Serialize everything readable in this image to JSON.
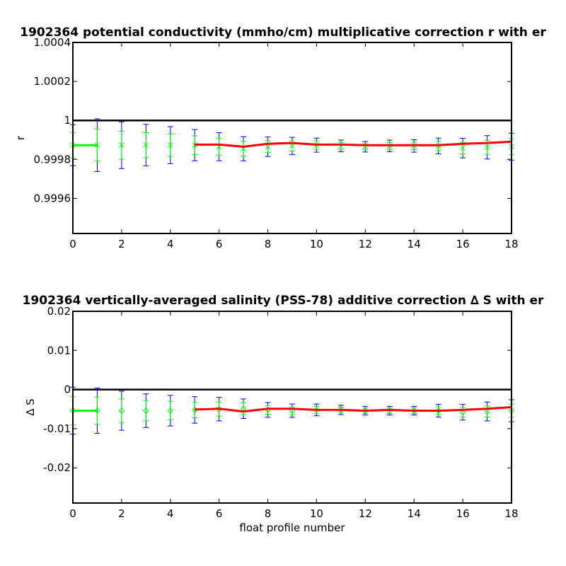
{
  "chart_data": [
    {
      "type": "errorbar",
      "title": "1902364 potential conductivity (mmho/cm) multiplicative correction r with er",
      "ylabel": "r",
      "xlim": [
        0,
        18
      ],
      "xticks": [
        0,
        2,
        4,
        6,
        8,
        10,
        12,
        14,
        16,
        18
      ],
      "ylim": [
        0.99942,
        1.0004
      ],
      "yticks": [
        0.9996,
        0.9998,
        1,
        1.0002,
        1.0004
      ],
      "reference_line": {
        "value": 1,
        "color": "#000000"
      },
      "series": [
        {
          "color": "#00ff00",
          "x": [
            0,
            1
          ],
          "values": [
            0.999873,
            0.999873
          ]
        },
        {
          "color": "#00ff00",
          "marker": "asterisk",
          "error_color": "#0000ff",
          "x": [
            0,
            1,
            2,
            3,
            4,
            5,
            6,
            7,
            8,
            9,
            10,
            11,
            12,
            13,
            14,
            15,
            16,
            17,
            18
          ],
          "values": [
            0.999873,
            0.999873,
            0.999873,
            0.999873,
            0.999873,
            0.999873,
            0.999865,
            0.999855,
            0.999865,
            0.999869,
            0.999873,
            0.999869,
            0.999865,
            0.999869,
            0.999869,
            0.999869,
            0.999858,
            0.999862,
            0.999865
          ],
          "errors": [
            6.5e-05,
            8.2e-05,
            7.2e-05,
            6.4e-05,
            5.7e-05,
            4.8e-05,
            4.3e-05,
            3.7e-05,
            3e-05,
            2.6e-05,
            2.2e-05,
            1.8e-05,
            1.6e-05,
            1.8e-05,
            1.9e-05,
            2.4e-05,
            3e-05,
            3.6e-05,
            4.1e-05
          ],
          "outer_errors": [
            0.000105,
            0.000135,
            0.00012,
            0.000107,
            9.5e-05,
            8e-05,
            7.2e-05,
            6.2e-05,
            5e-05,
            4.4e-05,
            3.6e-05,
            3e-05,
            2.7e-05,
            3e-05,
            3.2e-05,
            4e-05,
            5e-05,
            6e-05,
            6.9e-05
          ]
        },
        {
          "color": "#ff0000",
          "x": [
            5,
            6,
            7,
            8,
            9,
            10,
            11,
            12,
            13,
            14,
            15,
            16,
            17,
            18
          ],
          "values": [
            0.999876,
            0.999876,
            0.999865,
            0.99988,
            0.999884,
            0.999876,
            0.999876,
            0.999873,
            0.999873,
            0.999873,
            0.999873,
            0.99988,
            0.999884,
            0.999891
          ]
        }
      ]
    },
    {
      "type": "errorbar",
      "title": "1902364 vertically-averaged salinity (PSS-78) additive correction ∆ S with er",
      "ylabel": "∆ S",
      "xlabel": "float profile number",
      "xlim": [
        0,
        18
      ],
      "xticks": [
        0,
        2,
        4,
        6,
        8,
        10,
        12,
        14,
        16,
        18
      ],
      "ylim": [
        -0.029,
        0.02
      ],
      "yticks": [
        -0.02,
        -0.01,
        0,
        0.01,
        0.02
      ],
      "reference_line": {
        "value": 0,
        "color": "#000000"
      },
      "series": [
        {
          "color": "#00ff00",
          "x": [
            0,
            1
          ],
          "values": [
            -0.0054,
            -0.0054
          ]
        },
        {
          "color": "#00ff00",
          "marker": "diamond",
          "error_color": "#0000ff",
          "x": [
            0,
            1,
            2,
            3,
            4,
            5,
            6,
            7,
            8,
            9,
            10,
            11,
            12,
            13,
            14,
            15,
            16,
            17,
            18
          ],
          "values": [
            -0.0054,
            -0.0054,
            -0.0054,
            -0.0054,
            -0.0054,
            -0.0052,
            -0.005,
            -0.0049,
            -0.0052,
            -0.0054,
            -0.0052,
            -0.0052,
            -0.0054,
            -0.0054,
            -0.0054,
            -0.0054,
            -0.0058,
            -0.0056,
            -0.0054
          ],
          "errors": [
            0.0036,
            0.0035,
            0.003,
            0.0026,
            0.0023,
            0.002,
            0.0018,
            0.0015,
            0.0011,
            0.001,
            0.0009,
            0.0007,
            0.0007,
            0.0007,
            0.0007,
            0.001,
            0.0012,
            0.0014,
            0.0017
          ],
          "outer_errors": [
            0.006,
            0.0058,
            0.005,
            0.0043,
            0.0039,
            0.0034,
            0.003,
            0.0025,
            0.0019,
            0.0017,
            0.0015,
            0.0012,
            0.0011,
            0.0011,
            0.0011,
            0.0016,
            0.002,
            0.0024,
            0.0028
          ]
        },
        {
          "color": "#ff0000",
          "x": [
            5,
            6,
            7,
            8,
            9,
            10,
            11,
            12,
            13,
            14,
            15,
            16,
            17,
            18
          ],
          "values": [
            -0.0051,
            -0.0049,
            -0.0056,
            -0.0049,
            -0.0049,
            -0.0052,
            -0.0052,
            -0.0054,
            -0.0052,
            -0.0054,
            -0.0054,
            -0.0052,
            -0.0049,
            -0.0045
          ]
        }
      ]
    }
  ]
}
